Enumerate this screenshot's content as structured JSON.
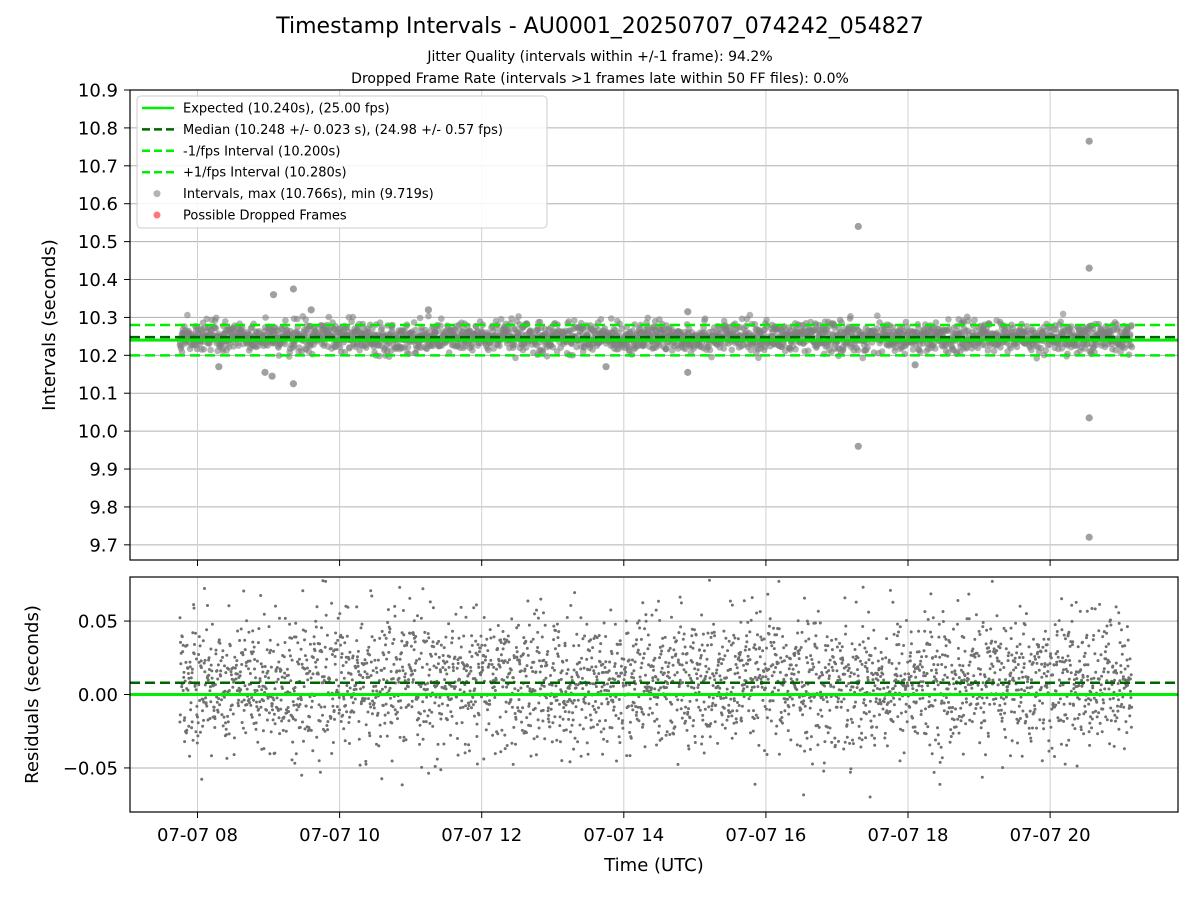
{
  "chart_data": [
    {
      "type": "scatter",
      "title": "Timestamp Intervals - AU0001_20250707_074242_054827",
      "subtitles": [
        "Jitter Quality (intervals within +/-1 frame): 94.2%",
        "Dropped Frame Rate (intervals >1 frames late within 50 FF files): 0.0%"
      ],
      "ylabel": "Intervals (seconds)",
      "xlabel": "",
      "x_range_hours": [
        7.05,
        21.8
      ],
      "ylim": [
        9.66,
        10.9
      ],
      "yticks": [
        "9.7",
        "9.8",
        "9.9",
        "10.0",
        "10.1",
        "10.2",
        "10.3",
        "10.4",
        "10.5",
        "10.6",
        "10.7",
        "10.8",
        "10.9"
      ],
      "grid": true,
      "legend_position": "top-left",
      "legend": [
        {
          "label": "Expected (10.240s), (25.00 fps)",
          "style": "solid",
          "color": "#00ee00"
        },
        {
          "label": "Median (10.248 +/- 0.023 s), (24.98 +/- 0.57 fps)",
          "style": "dashed",
          "color": "#006400"
        },
        {
          "label": "-1/fps Interval (10.200s)",
          "style": "dashed",
          "color": "#00ee00"
        },
        {
          "label": "+1/fps Interval (10.280s)",
          "style": "dashed",
          "color": "#00ee00"
        },
        {
          "label": "Intervals, max (10.766s), min (9.719s)",
          "style": "marker",
          "color": "#808080"
        },
        {
          "label": "Possible Dropped Frames",
          "style": "marker",
          "color": "#ff5555"
        }
      ],
      "lines": {
        "expected": 10.24,
        "median": 10.248,
        "minus_1_fps": 10.2,
        "plus_1_fps": 10.28
      },
      "series": [
        {
          "kind": "intervals",
          "time_span_hours": [
            7.75,
            21.15
          ],
          "center": 10.248,
          "spread": 0.023,
          "outliers": [
            {
              "x": 9.07,
              "y": 10.36
            },
            {
              "x": 9.35,
              "y": 10.375
            },
            {
              "x": 9.6,
              "y": 10.32
            },
            {
              "x": 8.95,
              "y": 10.155
            },
            {
              "x": 9.05,
              "y": 10.145
            },
            {
              "x": 9.35,
              "y": 10.125
            },
            {
              "x": 8.3,
              "y": 10.17
            },
            {
              "x": 11.25,
              "y": 10.32
            },
            {
              "x": 13.75,
              "y": 10.17
            },
            {
              "x": 14.9,
              "y": 10.155
            },
            {
              "x": 14.9,
              "y": 10.315
            },
            {
              "x": 17.3,
              "y": 10.54
            },
            {
              "x": 17.3,
              "y": 9.96
            },
            {
              "x": 18.1,
              "y": 10.175
            },
            {
              "x": 20.55,
              "y": 10.765
            },
            {
              "x": 20.55,
              "y": 10.43
            },
            {
              "x": 20.55,
              "y": 10.035
            },
            {
              "x": 20.55,
              "y": 9.72
            }
          ]
        }
      ]
    },
    {
      "type": "scatter",
      "title": "",
      "ylabel": "Residuals (seconds)",
      "xlabel": "Time (UTC)",
      "x_range_hours": [
        7.05,
        21.8
      ],
      "ylim": [
        -0.08,
        0.08
      ],
      "yticks": [
        "−0.05",
        "0.00",
        "0.05"
      ],
      "yticks_values": [
        -0.05,
        0.0,
        0.05
      ],
      "xticks": [
        "07-07 08",
        "07-07 10",
        "07-07 12",
        "07-07 14",
        "07-07 16",
        "07-07 18",
        "07-07 20"
      ],
      "xticks_hours": [
        8,
        10,
        12,
        14,
        16,
        18,
        20
      ],
      "grid": true,
      "lines": {
        "zero": 0.0,
        "median_offset": 0.008
      },
      "series": [
        {
          "kind": "residuals",
          "time_span_hours": [
            7.75,
            21.15
          ],
          "center": 0.008,
          "spread": 0.023
        }
      ]
    }
  ],
  "colors": {
    "expected": "#00ee00",
    "median": "#006400",
    "interval_points": "#808080",
    "dropped": "#ff5555",
    "grid": "#b0b0b0"
  }
}
